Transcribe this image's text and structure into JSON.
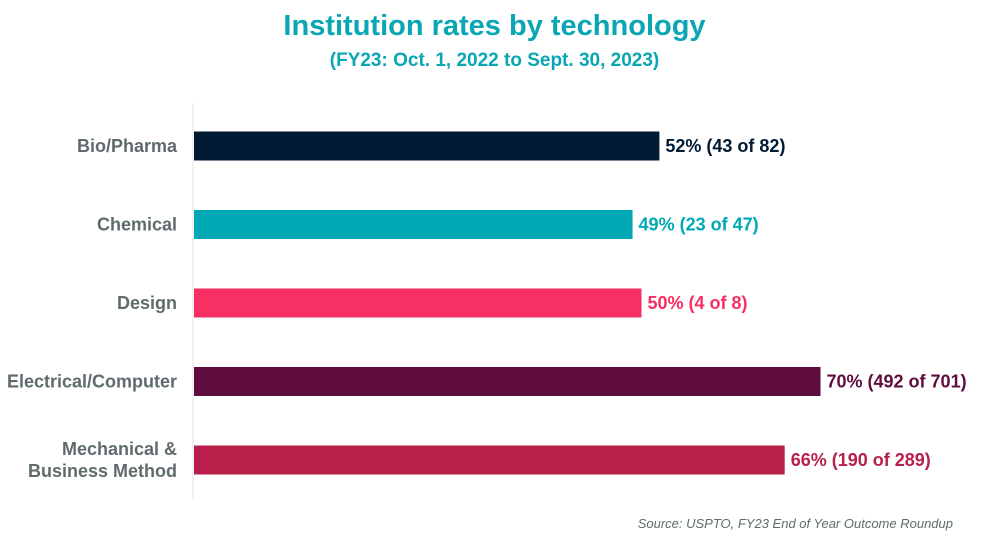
{
  "chart_data": {
    "type": "bar",
    "orientation": "horizontal",
    "title": "Institution rates by technology",
    "subtitle": "(FY23: Oct. 1, 2022 to Sept. 30, 2023)",
    "categories": [
      "Bio/Pharma",
      "Chemical",
      "Design",
      "Electrical/Computer",
      "Mechanical & Business Method"
    ],
    "category_lines": [
      [
        "Bio/Pharma"
      ],
      [
        "Chemical"
      ],
      [
        "Design"
      ],
      [
        "Electrical/Computer"
      ],
      [
        "Mechanical &",
        "Business Method"
      ]
    ],
    "values": [
      52,
      49,
      50,
      70,
      66
    ],
    "value_unit": "%",
    "data_labels": [
      "52% (43 of 82)",
      "49% (23 of 47)",
      "50% (4 of 8)",
      "70% (492 of 701)",
      "66% (190 of 289)"
    ],
    "colors": [
      "#001a33",
      "#00a8b5",
      "#f82f63",
      "#5e0d3e",
      "#b8204b"
    ],
    "xlim": [
      0,
      100
    ],
    "xlabel": "",
    "ylabel": "",
    "grid": false,
    "legend": "none",
    "source": "Source: USPTO, FY23 End of Year Outcome Roundup"
  }
}
